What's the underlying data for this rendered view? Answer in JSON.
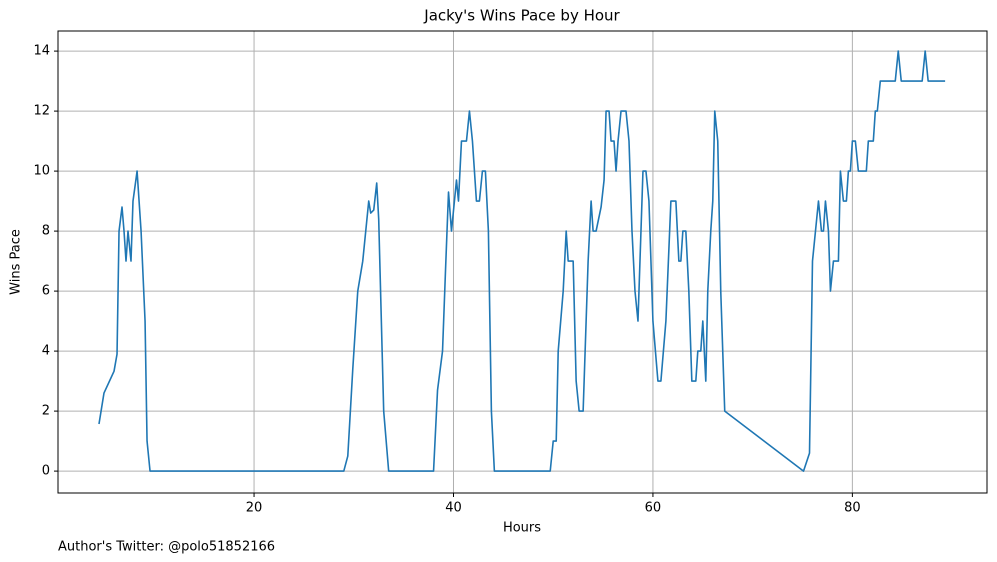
{
  "chart_data": {
    "type": "line",
    "title": "Jacky's Wins Pace by Hour",
    "xlabel": "Hours",
    "ylabel": "Wins Pace",
    "footnote": "Author's Twitter: @polo51852166",
    "color": "#1f77b4",
    "grid": true,
    "xlim": [
      0.34,
      93.5
    ],
    "ylim": [
      -0.73,
      14.67
    ],
    "xticks": [
      20,
      40,
      60,
      80
    ],
    "yticks": [
      0,
      2,
      4,
      6,
      8,
      10,
      12,
      14
    ],
    "x": [
      4.45,
      4.95,
      5.96,
      6.26,
      6.46,
      6.76,
      6.96,
      7.16,
      7.36,
      7.66,
      7.86,
      8.27,
      8.67,
      9.07,
      9.27,
      9.57,
      29.0,
      29.4,
      29.9,
      30.4,
      30.9,
      31.5,
      31.7,
      32.0,
      32.3,
      32.5,
      33.0,
      33.5,
      38.0,
      38.4,
      38.9,
      39.2,
      39.5,
      39.8,
      40.3,
      40.5,
      40.8,
      41.3,
      41.6,
      41.9,
      42.3,
      42.6,
      42.9,
      43.2,
      43.5,
      43.8,
      44.1,
      49.7,
      50.0,
      50.3,
      50.5,
      51.0,
      51.3,
      51.5,
      52.0,
      52.3,
      52.6,
      53.0,
      53.5,
      53.8,
      54.0,
      54.3,
      54.8,
      55.1,
      55.3,
      55.6,
      55.8,
      56.1,
      56.3,
      56.5,
      56.8,
      57.3,
      57.6,
      57.9,
      58.2,
      58.5,
      58.8,
      59.0,
      59.3,
      59.6,
      60.0,
      60.5,
      60.8,
      61.3,
      61.8,
      62.3,
      62.6,
      62.8,
      63.0,
      63.3,
      63.6,
      63.9,
      64.3,
      64.5,
      64.8,
      65.0,
      65.3,
      65.5,
      65.8,
      66.0,
      66.2,
      66.5,
      66.8,
      67.2,
      75.1,
      75.4,
      75.7,
      76.0,
      76.6,
      76.9,
      77.1,
      77.3,
      77.6,
      77.8,
      78.1,
      78.6,
      78.8,
      79.1,
      79.4,
      79.6,
      79.8,
      80.0,
      80.3,
      80.6,
      81.4,
      81.6,
      82.1,
      82.3,
      82.5,
      82.8,
      84.3,
      84.6,
      84.9,
      87.0,
      87.3,
      87.6,
      89.3
    ],
    "values": [
      1.57,
      2.6,
      3.33,
      3.9,
      8,
      8.8,
      8,
      7,
      8,
      7,
      9,
      10,
      8,
      5,
      1,
      0,
      0,
      0.5,
      3.4,
      6,
      7,
      9,
      8.6,
      8.7,
      9.6,
      8.4,
      2,
      0,
      0,
      2.7,
      4,
      6.7,
      9.3,
      8,
      9.7,
      9,
      11,
      11,
      12,
      11,
      9,
      9,
      10,
      10,
      8,
      2,
      0,
      0,
      1,
      1,
      4,
      6,
      8,
      7,
      7,
      3,
      2,
      2,
      7,
      9,
      8,
      8,
      8.8,
      9.7,
      12,
      12,
      11,
      11,
      10,
      11,
      12,
      12,
      11,
      8,
      6,
      5,
      8,
      10,
      10,
      9,
      5,
      3,
      3,
      5,
      9,
      9,
      7,
      7,
      8,
      8,
      6,
      3,
      3,
      4,
      4,
      5,
      3,
      6,
      8,
      9,
      12,
      11,
      6,
      2,
      0,
      0.3,
      0.6,
      7,
      9,
      8,
      8,
      9,
      8,
      6,
      7,
      7,
      10,
      9,
      9,
      10,
      10,
      11,
      11,
      10,
      10,
      11,
      11,
      12,
      12,
      13,
      13,
      14,
      13,
      13,
      14,
      13,
      13
    ]
  }
}
